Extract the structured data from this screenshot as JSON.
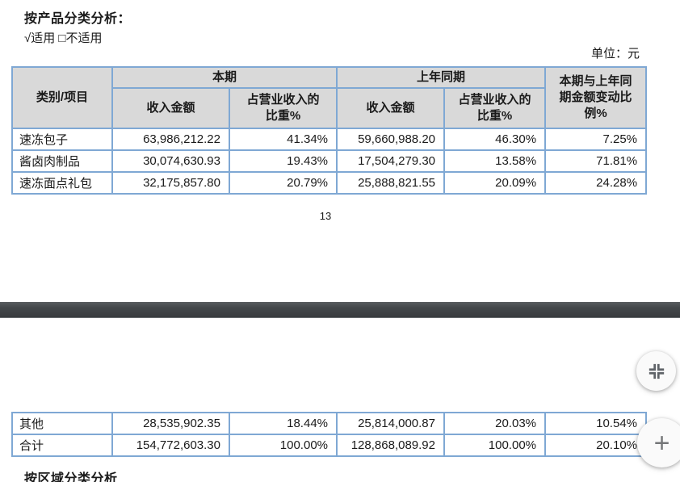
{
  "page1": {
    "section_heading": "按产品分类分析：",
    "applicability_line": "√适用 □不适用",
    "unit_label": "单位：元",
    "page_number": "13"
  },
  "table_header": {
    "category": "类别/项目",
    "current_period_group": "本期",
    "prior_period_group": "上年同期",
    "current_income": "收入金额",
    "current_ratio": "占营业收入的比重%",
    "prior_income": "收入金额",
    "prior_ratio": "占营业收入的比重%",
    "change_column": "本期与上年同期金额变动比例%"
  },
  "table_rows_page1": [
    {
      "category": "速冻包子",
      "current_income": "63,986,212.22",
      "current_ratio": "41.34%",
      "prior_income": "59,660,988.20",
      "prior_ratio": "46.30%",
      "change": "7.25%"
    },
    {
      "category": "酱卤肉制品",
      "current_income": "30,074,630.93",
      "current_ratio": "19.43%",
      "prior_income": "17,504,279.30",
      "prior_ratio": "13.58%",
      "change": "71.81%"
    },
    {
      "category": "速冻面点礼包",
      "current_income": "32,175,857.80",
      "current_ratio": "20.79%",
      "prior_income": "25,888,821.55",
      "prior_ratio": "20.09%",
      "change": "24.28%"
    }
  ],
  "table_rows_page2": [
    {
      "category": "其他",
      "current_income": "28,535,902.35",
      "current_ratio": "18.44%",
      "prior_income": "25,814,000.87",
      "prior_ratio": "20.03%",
      "change": "10.54%"
    },
    {
      "category": "合计",
      "current_income": "154,772,603.30",
      "current_ratio": "100.00%",
      "prior_income": "128,868,089.92",
      "prior_ratio": "100.00%",
      "change": "20.10%"
    }
  ],
  "page2": {
    "partial_heading": "按区域分类分析"
  },
  "controls": {
    "zoom_in_label": "+"
  },
  "colors": {
    "table_border": "#7fa8d4",
    "header_fill": "#d9d9d9",
    "separator_bar": "#3d4043",
    "icon_gray": "#5f6368"
  }
}
